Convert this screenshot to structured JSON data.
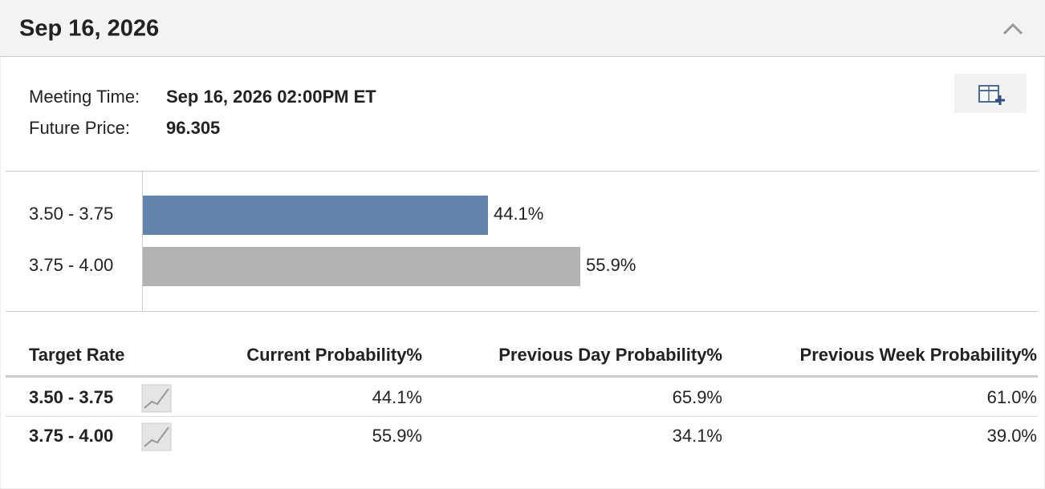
{
  "header": {
    "title": "Sep 16, 2026"
  },
  "meeting": {
    "time_label": "Meeting Time:",
    "time": "Sep 16, 2026 02:00PM ET",
    "price_label": "Future Price:",
    "price": "96.305"
  },
  "chart_data": {
    "type": "bar",
    "orientation": "horizontal",
    "categories": [
      "3.50 - 3.75",
      "3.75 - 4.00"
    ],
    "values": [
      44.1,
      55.9
    ],
    "value_labels": [
      "44.1%",
      "55.9%"
    ],
    "colors": [
      "#6383ad",
      "#b3b3b3"
    ],
    "xlim": [
      0,
      100
    ]
  },
  "table": {
    "columns": [
      "Target Rate",
      "Current Probability%",
      "Previous Day Probability%",
      "Previous Week Probability%"
    ],
    "rows": [
      [
        "3.50 - 3.75",
        "44.1%",
        "65.9%",
        "61.0%"
      ],
      [
        "3.75 - 4.00",
        "55.9%",
        "34.1%",
        "39.0%"
      ]
    ]
  }
}
